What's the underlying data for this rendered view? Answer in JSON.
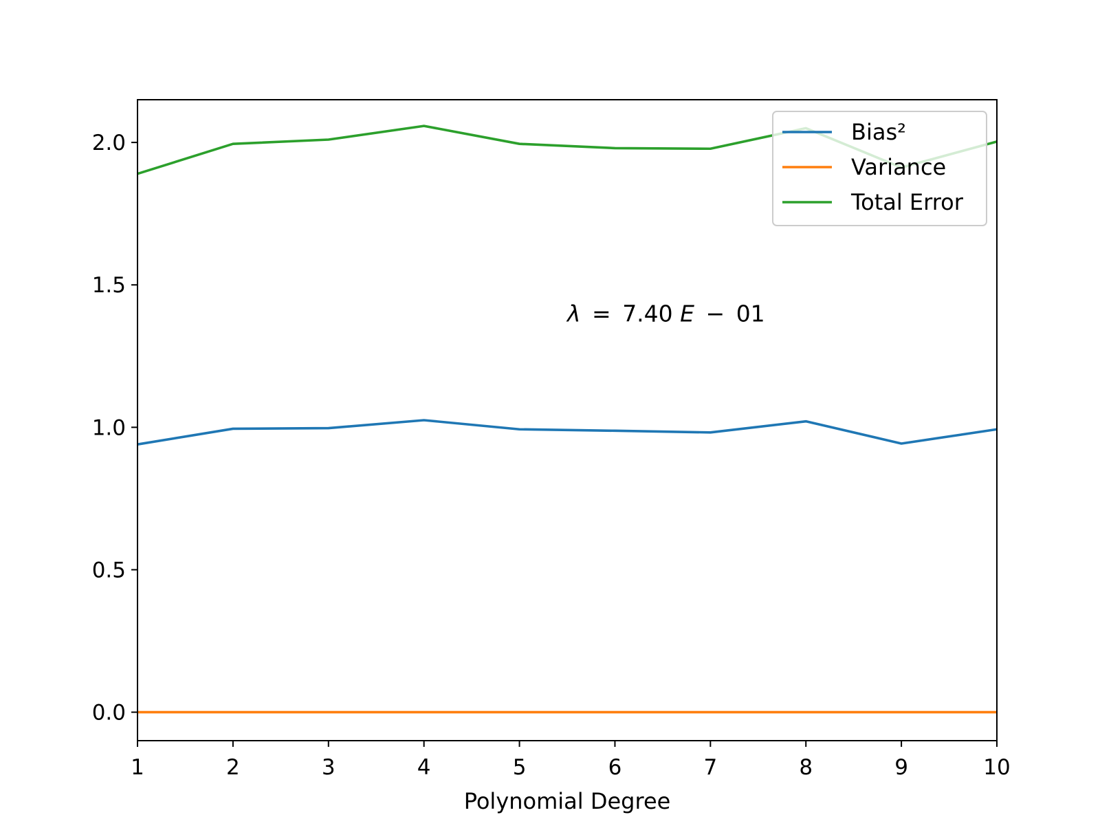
{
  "chart_data": {
    "type": "line",
    "title": "",
    "xlabel": "Polynomial Degree",
    "ylabel": "",
    "x": [
      1,
      2,
      3,
      4,
      5,
      6,
      7,
      8,
      9,
      10
    ],
    "xlim": [
      1,
      10
    ],
    "ylim": [
      -0.1,
      2.15
    ],
    "xticks": [
      "1",
      "2",
      "3",
      "4",
      "5",
      "6",
      "7",
      "8",
      "9",
      "10"
    ],
    "yticks": [
      "0.0",
      "0.5",
      "1.0",
      "1.5",
      "2.0"
    ],
    "grid": false,
    "legend_position": "top-right",
    "annotation": {
      "lambda_symbol": "λ",
      "equals": "=",
      "mantissa": "7.40",
      "exponent_letter": "E",
      "minus": "−",
      "exponent": "01",
      "x": 5.5,
      "y": 1.4
    },
    "series": [
      {
        "name": "Bias²",
        "color": "#1f77b4",
        "values": [
          0.94,
          0.995,
          0.997,
          1.025,
          0.993,
          0.988,
          0.982,
          1.021,
          0.943,
          0.993
        ]
      },
      {
        "name": "Variance",
        "color": "#ff7f0e",
        "values": [
          0.0,
          0.0,
          0.0,
          0.0,
          0.0,
          0.0,
          0.0,
          0.0,
          0.0,
          0.0
        ]
      },
      {
        "name": "Total Error",
        "color": "#2ca02c",
        "values": [
          1.89,
          1.995,
          2.01,
          2.058,
          1.995,
          1.98,
          1.978,
          2.05,
          1.912,
          2.003
        ]
      }
    ]
  }
}
